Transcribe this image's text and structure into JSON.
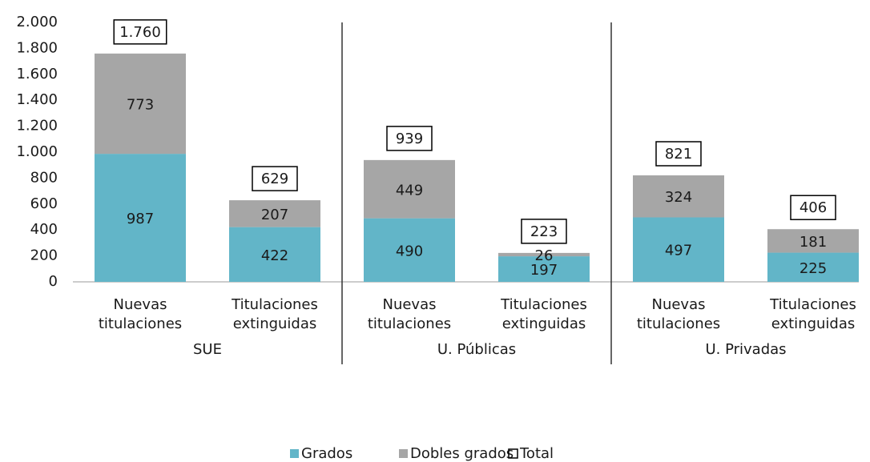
{
  "chart_data": {
    "type": "bar",
    "stacked": true,
    "categories": [
      [
        "Nuevas",
        "titulaciones"
      ],
      [
        "Titulaciones",
        "extinguidas"
      ],
      [
        "Nuevas",
        "titulaciones"
      ],
      [
        "Titulaciones",
        "extinguidas"
      ],
      [
        "Nuevas",
        "titulaciones"
      ],
      [
        "Titulaciones",
        "extinguidas"
      ]
    ],
    "groups": [
      "SUE",
      "U. Públicas",
      "U. Privadas"
    ],
    "series": [
      {
        "name": "Grados",
        "color": "#62b5c8",
        "values": [
          987,
          422,
          490,
          197,
          497,
          225
        ]
      },
      {
        "name": "Dobles grados",
        "color": "#a6a6a6",
        "values": [
          773,
          207,
          449,
          26,
          324,
          181
        ]
      }
    ],
    "totals": {
      "name": "Total",
      "color": "#000000",
      "values": [
        1760,
        629,
        939,
        223,
        821,
        406
      ],
      "value_labels": [
        "1.760",
        "629",
        "939",
        "223",
        "821",
        "406"
      ]
    },
    "ylim": [
      0,
      2000
    ],
    "yticks": [
      0,
      200,
      400,
      600,
      800,
      {
        "value": 1000,
        "label": "1.000"
      },
      {
        "value": 1200,
        "label": "1.200"
      },
      {
        "value": 1400,
        "label": "1.400"
      },
      {
        "value": 1600,
        "label": "1.600"
      },
      {
        "value": 1800,
        "label": "1.800"
      },
      {
        "value": 2000,
        "label": "2.000"
      }
    ],
    "grid": false
  }
}
